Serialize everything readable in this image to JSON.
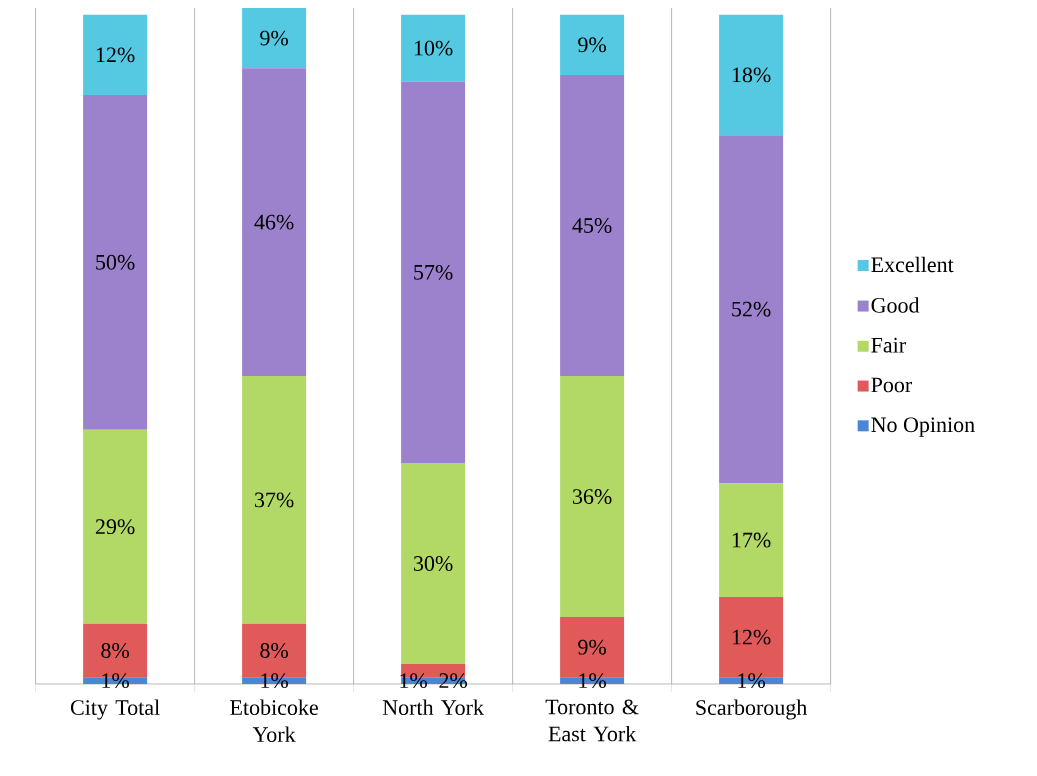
{
  "chart_data": {
    "type": "bar",
    "stacked": true,
    "categories": [
      "City Total",
      "Etobicoke York",
      "North York",
      "Toronto & East York",
      "Scarborough"
    ],
    "series": [
      {
        "name": "No Opinion",
        "color": "#4a86d4",
        "values": [
          1,
          1,
          1,
          1,
          1
        ],
        "value_labels": [
          "1%",
          "1%",
          "1%",
          "1%",
          "1%"
        ]
      },
      {
        "name": "Poor",
        "color": "#e05a5a",
        "values": [
          8,
          8,
          2,
          9,
          12
        ],
        "value_labels": [
          "8%",
          "8%",
          "2%",
          "9%",
          "12%"
        ]
      },
      {
        "name": "Fair",
        "color": "#b2d965",
        "values": [
          29,
          37,
          30,
          36,
          17
        ],
        "value_labels": [
          "29%",
          "37%",
          "30%",
          "36%",
          "17%"
        ]
      },
      {
        "name": "Good",
        "color": "#9c82cc",
        "values": [
          50,
          46,
          57,
          45,
          52
        ],
        "value_labels": [
          "50%",
          "46%",
          "57%",
          "45%",
          "52%"
        ]
      },
      {
        "name": "Excellent",
        "color": "#55c8e2",
        "values": [
          12,
          9,
          10,
          9,
          18
        ],
        "value_labels": [
          "12%",
          "9%",
          "10%",
          "9%",
          "18%"
        ]
      }
    ],
    "grid": "x",
    "legend": "right"
  }
}
